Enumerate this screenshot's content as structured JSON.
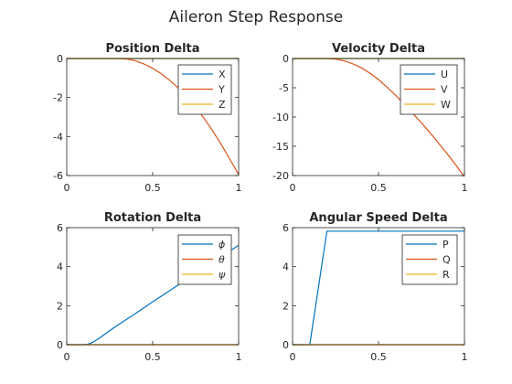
{
  "figure": {
    "title": "Aileron Step Response"
  },
  "chart_data": [
    {
      "type": "line",
      "title": "Position Delta",
      "xlabel": "",
      "ylabel": "",
      "xlim": [
        0,
        1
      ],
      "ylim": [
        -6,
        0
      ],
      "xticks": [
        0,
        0.5,
        1
      ],
      "xtick_labels": [
        "0",
        "0.5",
        "1"
      ],
      "yticks": [
        -6,
        -4,
        -2,
        0
      ],
      "ytick_labels": [
        "-6",
        "-4",
        "-2",
        "0"
      ],
      "grid": false,
      "legend_position": "top-right",
      "series": [
        {
          "name": "X",
          "color": "#0072BD",
          "x": [
            0,
            1
          ],
          "y": [
            0,
            0
          ]
        },
        {
          "name": "Y",
          "color": "#D95319",
          "x": [
            0,
            0.3,
            0.35,
            0.4,
            0.45,
            0.5,
            0.55,
            0.6,
            0.65,
            0.7,
            0.75,
            0.8,
            0.85,
            0.9,
            0.95,
            1.0
          ],
          "y": [
            0,
            0,
            -0.03,
            -0.12,
            -0.28,
            -0.5,
            -0.78,
            -1.12,
            -1.52,
            -1.98,
            -2.5,
            -3.08,
            -3.72,
            -4.42,
            -5.18,
            -5.95
          ]
        },
        {
          "name": "Z",
          "color": "#EDB120",
          "x": [
            0,
            1
          ],
          "y": [
            0,
            0
          ]
        }
      ]
    },
    {
      "type": "line",
      "title": "Velocity Delta",
      "xlabel": "",
      "ylabel": "",
      "xlim": [
        0,
        1
      ],
      "ylim": [
        -20,
        0
      ],
      "xticks": [
        0,
        0.5,
        1
      ],
      "xtick_labels": [
        "0",
        "0.5",
        "1"
      ],
      "yticks": [
        -20,
        -15,
        -10,
        -5,
        0
      ],
      "ytick_labels": [
        "-20",
        "-15",
        "-10",
        "-5",
        "0"
      ],
      "grid": false,
      "legend_position": "top-right",
      "series": [
        {
          "name": "U",
          "color": "#0072BD",
          "x": [
            0,
            1
          ],
          "y": [
            0,
            0
          ]
        },
        {
          "name": "V",
          "color": "#D95319",
          "x": [
            0,
            0.2,
            0.25,
            0.3,
            0.35,
            0.4,
            0.45,
            0.5,
            0.55,
            0.6,
            0.65,
            0.7,
            0.75,
            0.8,
            0.85,
            0.9,
            0.95,
            1.0
          ],
          "y": [
            0,
            0,
            -0.1,
            -0.4,
            -0.9,
            -1.6,
            -2.5,
            -3.6,
            -4.9,
            -6.3,
            -7.8,
            -9.4,
            -11.0,
            -12.7,
            -14.5,
            -16.3,
            -18.2,
            -20.2
          ]
        },
        {
          "name": "W",
          "color": "#EDB120",
          "x": [
            0,
            1
          ],
          "y": [
            0,
            0
          ]
        }
      ]
    },
    {
      "type": "line",
      "title": "Rotation Delta",
      "xlabel": "",
      "ylabel": "",
      "xlim": [
        0,
        1
      ],
      "ylim": [
        0,
        6
      ],
      "xticks": [
        0,
        0.5,
        1
      ],
      "xtick_labels": [
        "0",
        "0.5",
        "1"
      ],
      "yticks": [
        0,
        2,
        4,
        6
      ],
      "ytick_labels": [
        "0",
        "2",
        "4",
        "6"
      ],
      "grid": false,
      "legend_position": "top-right",
      "series": [
        {
          "name": "ϕ",
          "color": "#0072BD",
          "x": [
            0,
            0.1,
            0.12,
            0.14,
            0.16,
            0.18,
            0.2,
            0.25,
            0.3,
            0.4,
            0.5,
            0.6,
            0.7,
            0.8,
            0.9,
            1.0
          ],
          "y": [
            0,
            0,
            0.02,
            0.08,
            0.17,
            0.28,
            0.4,
            0.72,
            1.02,
            1.6,
            2.2,
            2.78,
            3.36,
            3.94,
            4.52,
            5.1
          ]
        },
        {
          "name": "θ",
          "color": "#D95319",
          "x": [
            0,
            1
          ],
          "y": [
            0,
            0
          ]
        },
        {
          "name": "ψ",
          "color": "#EDB120",
          "x": [
            0,
            1
          ],
          "y": [
            0,
            0
          ]
        }
      ]
    },
    {
      "type": "line",
      "title": "Angular Speed Delta",
      "xlabel": "",
      "ylabel": "",
      "xlim": [
        0,
        1
      ],
      "ylim": [
        0,
        6
      ],
      "xticks": [
        0,
        0.5,
        1
      ],
      "xtick_labels": [
        "0",
        "0.5",
        "1"
      ],
      "yticks": [
        0,
        2,
        4,
        6
      ],
      "ytick_labels": [
        "0",
        "2",
        "4",
        "6"
      ],
      "grid": false,
      "legend_position": "top-right",
      "series": [
        {
          "name": "P",
          "color": "#0072BD",
          "x": [
            0,
            0.1,
            0.2,
            0.5,
            1.0
          ],
          "y": [
            0,
            0,
            5.82,
            5.82,
            5.82
          ]
        },
        {
          "name": "Q",
          "color": "#D95319",
          "x": [
            0,
            1
          ],
          "y": [
            0,
            0
          ]
        },
        {
          "name": "R",
          "color": "#EDB120",
          "x": [
            0,
            1
          ],
          "y": [
            0,
            0
          ]
        }
      ]
    }
  ]
}
